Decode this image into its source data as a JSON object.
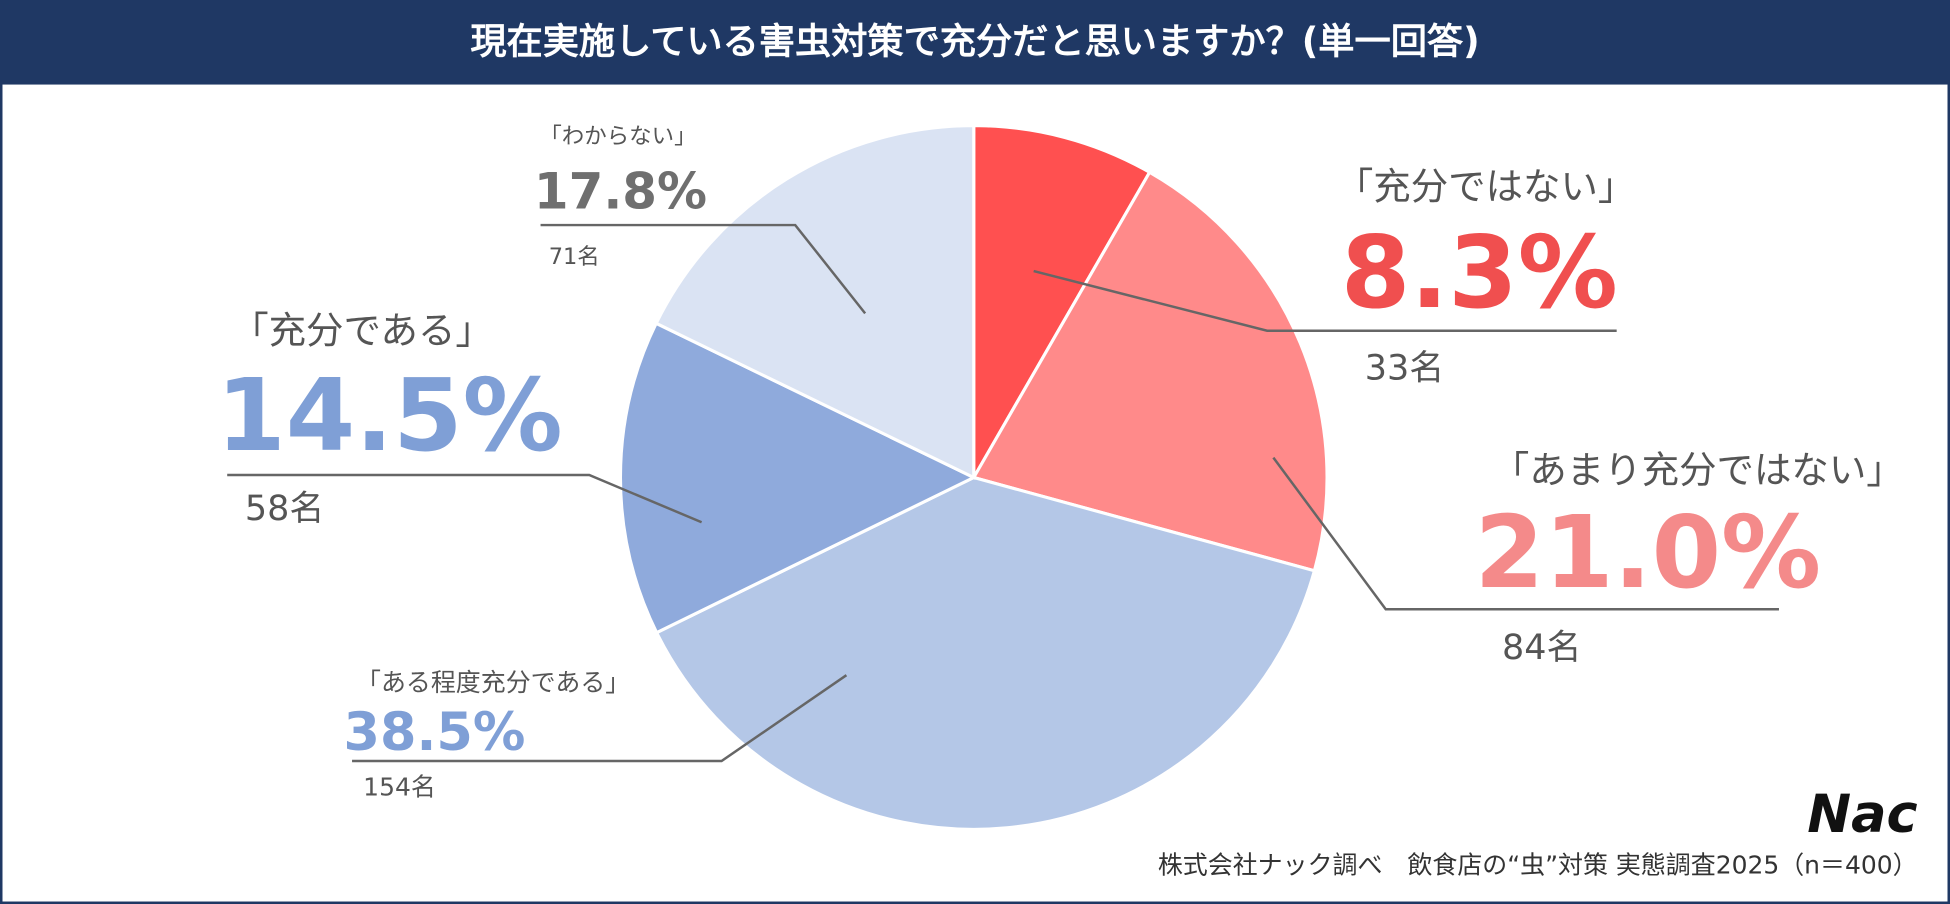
{
  "chart_data": {
    "type": "pie",
    "title": "現在実施している害虫対策で充分だと思いますか？(単一回答)",
    "categories": [
      "「充分ではない」",
      "「あまり充分ではない」",
      "「ある程度充分である」",
      "「充分である」",
      "「わからない」"
    ],
    "values": [
      8.3,
      21.0,
      38.5,
      14.5,
      17.8
    ],
    "value_labels": [
      "8.3%",
      "21.0%",
      "38.5%",
      "14.5%",
      "17.8%"
    ],
    "counts": [
      33,
      84,
      154,
      58,
      71
    ],
    "count_labels": [
      "33名",
      "84名",
      "154名",
      "58名",
      "71名"
    ],
    "colors": [
      "#ff5050",
      "#ff8a8a",
      "#b4c7e7",
      "#8faadc",
      "#dae3f3"
    ],
    "source": "株式会社ナック調べ　飲食店の“虫”対策 実態調査2025（n＝400）",
    "logo": "Nac"
  }
}
